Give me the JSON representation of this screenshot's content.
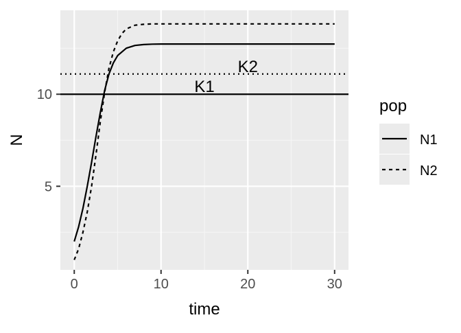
{
  "chart_data": {
    "type": "line",
    "xlabel": "time",
    "ylabel": "N",
    "xlim": [
      -1.6,
      31.6
    ],
    "ylim": [
      0.46,
      14.56
    ],
    "x_ticks": [
      0,
      10,
      20,
      30
    ],
    "x_tick_labels": [
      "0",
      "10",
      "20",
      "30"
    ],
    "y_ticks": [
      5,
      10
    ],
    "y_tick_labels": [
      "5",
      "10"
    ],
    "grid": true,
    "legend": {
      "title": "pop",
      "position": "right",
      "entries": [
        {
          "label": "N1",
          "linetype": "solid"
        },
        {
          "label": "N2",
          "linetype": "dashed"
        }
      ]
    },
    "series": [
      {
        "name": "N1",
        "linetype": "solid",
        "color": "#000000",
        "x": [
          0,
          0.5,
          1,
          1.5,
          2,
          2.5,
          3,
          3.5,
          4,
          4.5,
          5,
          6,
          7,
          8,
          9,
          10,
          12,
          15,
          20,
          25,
          30
        ],
        "y": [
          2.0,
          2.8,
          3.8,
          5.0,
          6.3,
          7.7,
          9.0,
          10.2,
          11.1,
          11.7,
          12.1,
          12.5,
          12.65,
          12.7,
          12.72,
          12.73,
          12.73,
          12.73,
          12.73,
          12.73,
          12.73
        ]
      },
      {
        "name": "N2",
        "linetype": "dashed",
        "color": "#000000",
        "x": [
          0,
          0.5,
          1,
          1.5,
          2,
          2.5,
          3,
          3.5,
          4,
          4.5,
          5,
          5.5,
          6,
          7,
          8,
          9,
          10,
          12,
          15,
          20,
          25,
          30
        ],
        "y": [
          1.0,
          1.6,
          2.5,
          3.6,
          5.0,
          6.7,
          8.5,
          10.1,
          11.4,
          12.3,
          12.9,
          13.3,
          13.55,
          13.75,
          13.8,
          13.82,
          13.82,
          13.82,
          13.82,
          13.82,
          13.82,
          13.82
        ]
      }
    ],
    "reference_lines": [
      {
        "name": "K1",
        "y": 10.0,
        "linetype": "solid",
        "label": "K1",
        "label_x": 15
      },
      {
        "name": "K2",
        "y": 11.1,
        "linetype": "dotted",
        "label": "K2",
        "label_x": 20
      }
    ]
  },
  "colors": {
    "panel_background": "#ebebeb",
    "grid_major": "#ffffff",
    "grid_minor": "#f5f5f5",
    "line": "#000000",
    "tick_text": "#4d4d4d",
    "axis_title": "#000000",
    "legend_key_background": "#ebebeb"
  }
}
